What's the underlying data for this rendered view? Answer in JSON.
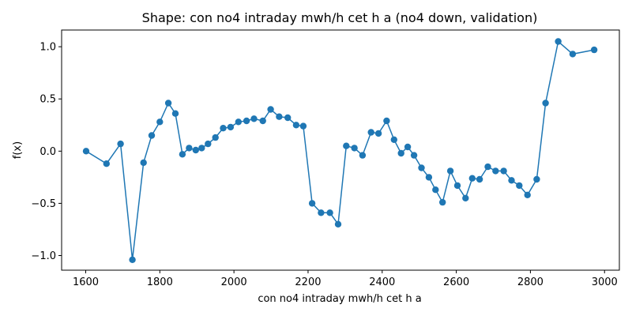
{
  "chart_data": {
    "type": "line",
    "title": "Shape: con no4 intraday mwh/h cet h a (no4 down, validation)",
    "xlabel": "con no4 intraday mwh/h cet h a",
    "ylabel": "f(x)",
    "xlim": [
      1535,
      3040
    ],
    "ylim": [
      -1.14,
      1.16
    ],
    "xticks": [
      1600,
      1800,
      2000,
      2200,
      2400,
      2600,
      2800,
      3000
    ],
    "yticks": [
      -1.0,
      -0.5,
      0.0,
      0.5,
      1.0
    ],
    "xtick_labels": [
      "1600",
      "1800",
      "2000",
      "2200",
      "2400",
      "2600",
      "2800",
      "3000"
    ],
    "ytick_labels": [
      "−1.0",
      "−0.5",
      "0.0",
      "0.5",
      "1.0"
    ],
    "grid": false,
    "color": "#1f77b4",
    "series": [
      {
        "x": [
          1601,
          1656,
          1694,
          1726,
          1756,
          1778,
          1800,
          1823,
          1842,
          1861,
          1879,
          1897,
          1913,
          1930,
          1950,
          1971,
          1991,
          2012,
          2034,
          2054,
          2078,
          2099,
          2122,
          2145,
          2168,
          2187,
          2211,
          2235,
          2259,
          2281,
          2303,
          2325,
          2347,
          2370,
          2390,
          2412,
          2432,
          2451,
          2469,
          2486,
          2506,
          2526,
          2544,
          2563,
          2584,
          2603,
          2625,
          2643,
          2663,
          2685,
          2706,
          2728,
          2749,
          2770,
          2792,
          2817,
          2841,
          2875,
          2914,
          2972
        ],
        "y": [
          0.0,
          -0.12,
          0.07,
          -1.04,
          -0.11,
          0.15,
          0.28,
          0.46,
          0.36,
          -0.03,
          0.03,
          0.01,
          0.03,
          0.07,
          0.13,
          0.22,
          0.23,
          0.28,
          0.29,
          0.31,
          0.29,
          0.4,
          0.33,
          0.32,
          0.25,
          0.24,
          -0.5,
          -0.59,
          -0.59,
          -0.7,
          0.05,
          0.03,
          -0.04,
          0.18,
          0.17,
          0.29,
          0.11,
          -0.02,
          0.04,
          -0.04,
          -0.16,
          -0.25,
          -0.37,
          -0.49,
          -0.19,
          -0.33,
          -0.45,
          -0.26,
          -0.27,
          -0.15,
          -0.19,
          -0.19,
          -0.28,
          -0.33,
          -0.42,
          -0.27,
          0.46,
          1.05,
          0.93,
          0.97
        ]
      }
    ]
  }
}
